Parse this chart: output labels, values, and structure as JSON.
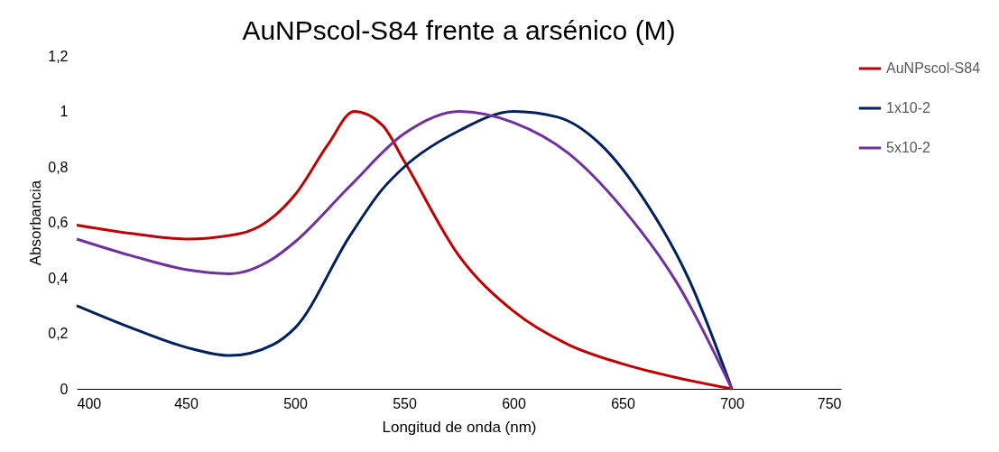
{
  "chart_data": {
    "type": "line",
    "title": "AuNPscol-S84 frente a arsénico (M)",
    "xlabel": "Longitud de onda (nm)",
    "ylabel": "Absorbancia",
    "xlim": [
      400,
      750
    ],
    "xticks": [
      400,
      450,
      500,
      550,
      600,
      650,
      700,
      750
    ],
    "ylim": [
      0,
      1.2
    ],
    "yticks": [
      0,
      {
        "value": 0.2,
        "label": "0,2"
      },
      {
        "value": 0.4,
        "label": "0,4"
      },
      {
        "value": 0.6,
        "label": "0,6"
      },
      {
        "value": 0.8,
        "label": "0,8"
      },
      1,
      {
        "value": 1.2,
        "label": "1,2"
      }
    ],
    "grid": false,
    "legend": "right",
    "marker": "none",
    "line_style": "solid",
    "series": [
      {
        "name": "AuNPscol-S84",
        "color": "#c00000",
        "x": [
          400,
          425,
          450,
          475,
          490,
          500,
          515,
          527,
          540,
          550,
          575,
          600,
          625,
          650,
          675,
          700
        ],
        "values": [
          0.59,
          0.56,
          0.54,
          0.56,
          0.62,
          0.7,
          0.88,
          1.0,
          0.95,
          0.82,
          0.48,
          0.28,
          0.16,
          0.09,
          0.04,
          0
        ]
      },
      {
        "name": "1x10-2",
        "color": "#002060",
        "x": [
          400,
          425,
          450,
          470,
          490,
          500,
          525,
          540,
          550,
          575,
          600,
          620,
          640,
          660,
          680,
          700
        ],
        "values": [
          0.3,
          0.22,
          0.15,
          0.12,
          0.16,
          0.22,
          0.55,
          0.72,
          0.8,
          0.93,
          1.0,
          0.98,
          0.88,
          0.68,
          0.4,
          0
        ]
      },
      {
        "name": "5x10-2",
        "color": "#7030a0",
        "x": [
          400,
          425,
          450,
          470,
          490,
          500,
          525,
          550,
          575,
          600,
          625,
          650,
          675,
          700
        ],
        "values": [
          0.54,
          0.48,
          0.43,
          0.415,
          0.47,
          0.53,
          0.73,
          0.92,
          1.0,
          0.96,
          0.85,
          0.65,
          0.38,
          0
        ]
      }
    ]
  }
}
